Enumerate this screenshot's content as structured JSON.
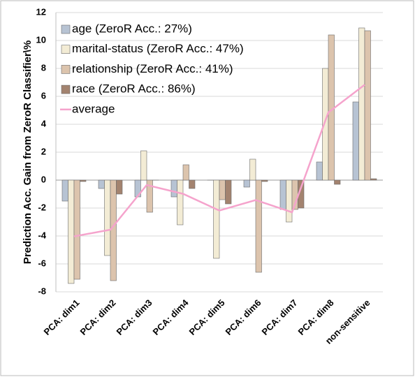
{
  "chart_data": {
    "type": "bar",
    "y_label": "Prediction Acc. Gain from ZeroR Classifier\\%",
    "categories": [
      "PCA: dim1",
      "PCA: dim2",
      "PCA: dim3",
      "PCA: dim4",
      "PCA: dim5",
      "PCA: dim6",
      "PCA: dim7",
      "PCA: dim8",
      "non-sensitive"
    ],
    "series": [
      {
        "name": "age (ZeroR Acc.: 27%)",
        "color": "#b7c3d3",
        "values": [
          -1.5,
          -0.6,
          -1.2,
          -1.2,
          0,
          -0.5,
          -2.1,
          1.3,
          5.6
        ]
      },
      {
        "name": "marital-status (ZeroR Acc.: 47%)",
        "color": "#f3ecd5",
        "values": [
          -7.4,
          -5.4,
          2.1,
          -3.2,
          -5.6,
          1.5,
          -3.0,
          8.0,
          10.9
        ]
      },
      {
        "name": "relationship (ZeroR Acc.: 41%)",
        "color": "#dcc4ad",
        "values": [
          -7.1,
          -7.2,
          -2.3,
          1.1,
          -1.4,
          -6.6,
          -2.1,
          10.4,
          10.7
        ]
      },
      {
        "name": "race (ZeroR Acc.: 86%)",
        "color": "#a3836f",
        "values": [
          -0.1,
          -1.0,
          0,
          -0.6,
          -1.7,
          -0.1,
          -2.0,
          -0.3,
          0.1
        ]
      },
      {
        "name": "average",
        "color": "#f5a3cc",
        "type": "line",
        "values": [
          -4.03,
          -3.55,
          -0.35,
          -0.98,
          -2.18,
          -1.43,
          -2.3,
          4.85,
          6.83
        ]
      }
    ],
    "ylim": [
      -8,
      12
    ],
    "yticks": [
      -8,
      -6,
      -4,
      -2,
      0,
      2,
      4,
      6,
      8,
      10,
      12
    ],
    "grid": true,
    "legend": "top-left"
  }
}
